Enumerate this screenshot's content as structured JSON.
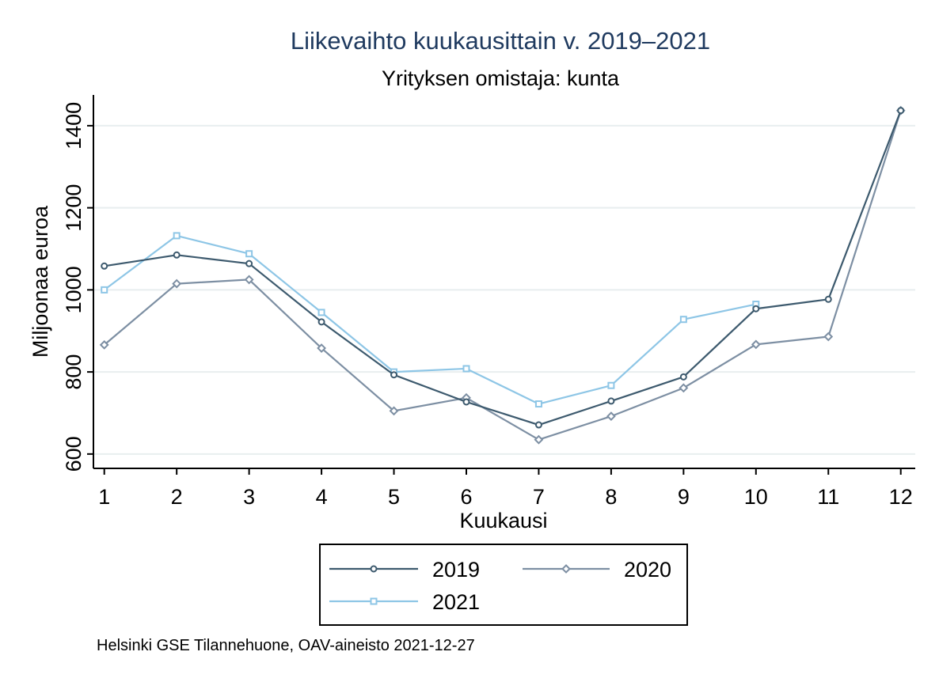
{
  "colors": {
    "2019": "#3d5a6e",
    "2020": "#7d8fa3",
    "2021": "#8ec6e6",
    "grid": "#e8eeef"
  },
  "chart_data": {
    "type": "line",
    "title": "Liikevaihto kuukausittain v. 2019–2021",
    "subtitle": "Yrityksen omistaja: kunta",
    "xlabel": "Kuukausi",
    "ylabel": "Miljoonaa euroa",
    "x": [
      1,
      2,
      3,
      4,
      5,
      6,
      7,
      8,
      9,
      10,
      11,
      12
    ],
    "x_ticks": [
      "1",
      "2",
      "3",
      "4",
      "5",
      "6",
      "7",
      "8",
      "9",
      "10",
      "11",
      "12"
    ],
    "y_ticks": [
      "600",
      "800",
      "1000",
      "1200",
      "1400"
    ],
    "xlim": [
      0.85,
      12.2
    ],
    "ylim": [
      565,
      1475
    ],
    "grid": true,
    "legend_position": "bottom",
    "series": [
      {
        "name": "2019",
        "marker": "circle",
        "values": [
          1058,
          1085,
          1064,
          922,
          793,
          727,
          671,
          729,
          788,
          954,
          977,
          1437
        ]
      },
      {
        "name": "2020",
        "marker": "diamond",
        "values": [
          866,
          1015,
          1025,
          858,
          705,
          737,
          635,
          692,
          761,
          867,
          886,
          1437
        ]
      },
      {
        "name": "2021",
        "marker": "square",
        "values": [
          1000,
          1132,
          1088,
          945,
          800,
          808,
          722,
          767,
          928,
          965,
          null,
          null
        ]
      }
    ],
    "note": "Helsinki GSE Tilannehuone, OAV-aineisto 2021-12-27"
  }
}
